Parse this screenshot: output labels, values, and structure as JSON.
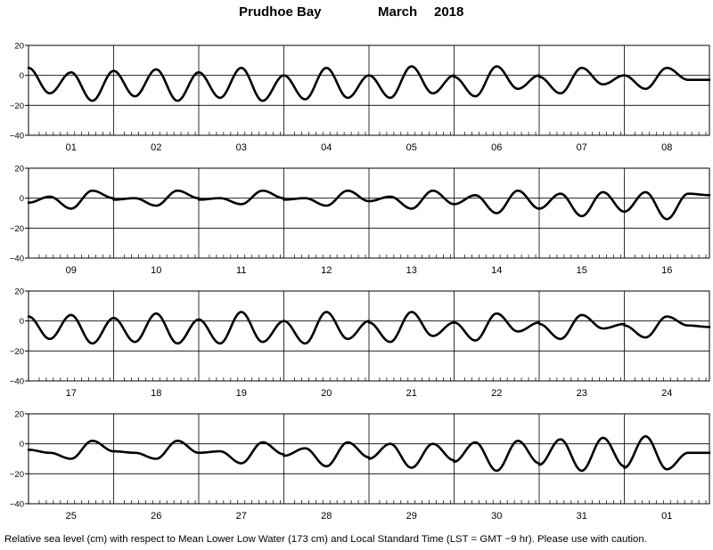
{
  "title": {
    "location": "Prudhoe Bay",
    "month": "March",
    "year": "2018"
  },
  "footnote": "Relative sea level (cm) with respect to Mean Lower Low Water (173 cm) and Local Standard Time (LST = GMT −9 hr). Please use with caution.",
  "chart_data": {
    "type": "line",
    "yticks": [
      20,
      0,
      -20,
      -40
    ],
    "ylim": [
      -40,
      20
    ],
    "grid": true,
    "panels": [
      {
        "days": [
          "01",
          "02",
          "03",
          "04",
          "05",
          "06",
          "07",
          "08"
        ],
        "series": [
          {
            "day": "01",
            "values": [
              5,
              -12,
              2,
              -17,
              3
            ]
          },
          {
            "day": "02",
            "values": [
              3,
              -14,
              4,
              -17,
              2
            ]
          },
          {
            "day": "03",
            "values": [
              2,
              -15,
              5,
              -17,
              0
            ]
          },
          {
            "day": "04",
            "values": [
              0,
              -16,
              5,
              -15,
              0
            ]
          },
          {
            "day": "05",
            "values": [
              0,
              -15,
              6,
              -12,
              0
            ]
          },
          {
            "day": "06",
            "values": [
              -1,
              -14,
              6,
              -9,
              0
            ]
          },
          {
            "day": "07",
            "values": [
              -1,
              -12,
              5,
              -6,
              0
            ]
          },
          {
            "day": "08",
            "values": [
              0,
              -9,
              5,
              -3,
              -3
            ]
          }
        ]
      },
      {
        "days": [
          "09",
          "10",
          "11",
          "12",
          "13",
          "14",
          "15",
          "16"
        ],
        "series": [
          {
            "day": "09",
            "values": [
              -3,
              1,
              -7,
              5,
              0
            ]
          },
          {
            "day": "10",
            "values": [
              -1,
              0,
              -5,
              5,
              0
            ]
          },
          {
            "day": "11",
            "values": [
              -1,
              0,
              -4,
              5,
              0
            ]
          },
          {
            "day": "12",
            "values": [
              -1,
              0,
              -5,
              5,
              -2
            ]
          },
          {
            "day": "13",
            "values": [
              -2,
              1,
              -7,
              5,
              -4
            ]
          },
          {
            "day": "14",
            "values": [
              -4,
              2,
              -10,
              5,
              -7
            ]
          },
          {
            "day": "15",
            "values": [
              -7,
              3,
              -12,
              4,
              -9
            ]
          },
          {
            "day": "16",
            "values": [
              -9,
              4,
              -14,
              3,
              2
            ]
          }
        ]
      },
      {
        "days": [
          "17",
          "18",
          "19",
          "20",
          "21",
          "22",
          "23",
          "24"
        ],
        "series": [
          {
            "day": "17",
            "values": [
              3,
              -12,
              4,
              -15,
              2
            ]
          },
          {
            "day": "18",
            "values": [
              2,
              -14,
              5,
              -15,
              1
            ]
          },
          {
            "day": "19",
            "values": [
              1,
              -15,
              6,
              -14,
              0
            ]
          },
          {
            "day": "20",
            "values": [
              0,
              -15,
              6,
              -12,
              0
            ]
          },
          {
            "day": "21",
            "values": [
              -1,
              -14,
              6,
              -10,
              -1
            ]
          },
          {
            "day": "22",
            "values": [
              -1,
              -13,
              5,
              -7,
              -1
            ]
          },
          {
            "day": "23",
            "values": [
              -2,
              -12,
              4,
              -5,
              -2
            ]
          },
          {
            "day": "24",
            "values": [
              -3,
              -11,
              3,
              -3,
              -4
            ]
          }
        ]
      },
      {
        "days": [
          "25",
          "26",
          "27",
          "28",
          "29",
          "30",
          "31",
          "01"
        ],
        "series": [
          {
            "day": "25",
            "values": [
              -4,
              -6,
              -10,
              2,
              -5
            ]
          },
          {
            "day": "26",
            "values": [
              -5,
              -6,
              -10,
              2,
              -6
            ]
          },
          {
            "day": "27",
            "values": [
              -6,
              -5,
              -13,
              1,
              -7
            ]
          },
          {
            "day": "28",
            "values": [
              -8,
              -3,
              -15,
              1,
              -9
            ]
          },
          {
            "day": "29",
            "values": [
              -10,
              0,
              -16,
              0,
              -11
            ]
          },
          {
            "day": "30",
            "values": [
              -12,
              1,
              -18,
              2,
              -13
            ]
          },
          {
            "day": "31",
            "values": [
              -14,
              3,
              -18,
              4,
              -15
            ]
          },
          {
            "day": "01",
            "values": [
              -16,
              5,
              -17,
              -6,
              -6
            ]
          }
        ]
      }
    ]
  }
}
